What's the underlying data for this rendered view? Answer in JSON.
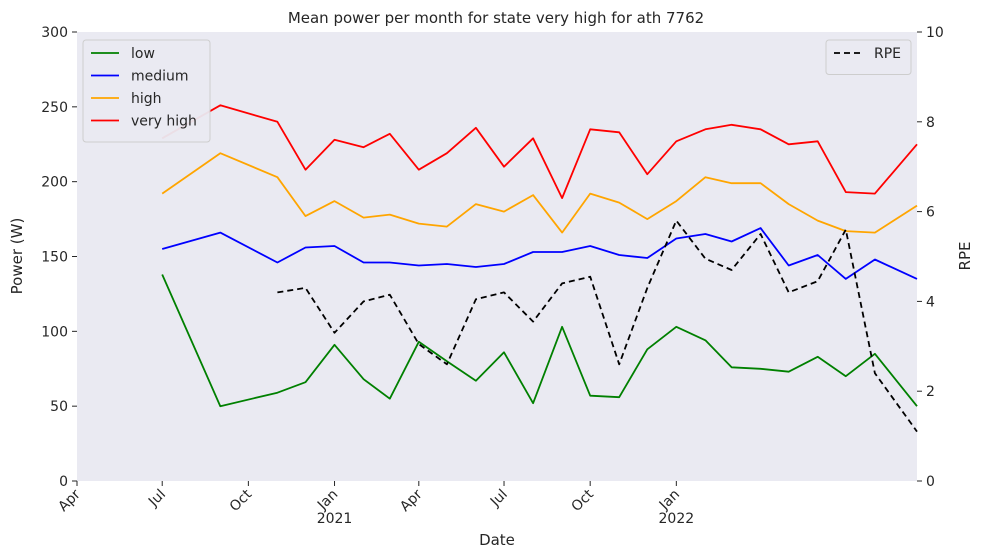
{
  "chart_data": {
    "type": "line",
    "title": "Mean power per month for state very high for ath 7762",
    "xlabel": "Date",
    "ylabel": "Power (W)",
    "y2label": "RPE",
    "ylim": [
      0,
      300
    ],
    "y2lim": [
      0,
      10
    ],
    "xlim": [
      "2020-04-01",
      "2022-09-15"
    ],
    "yticks": [
      0,
      50,
      100,
      150,
      200,
      250,
      300
    ],
    "y2ticks": [
      0,
      2,
      4,
      6,
      8,
      10
    ],
    "xticks": [
      {
        "date": "2020-04-01",
        "label": "Apr",
        "year": ""
      },
      {
        "date": "2020-07-01",
        "label": "Jul",
        "year": ""
      },
      {
        "date": "2020-10-01",
        "label": "Oct",
        "year": ""
      },
      {
        "date": "2021-01-01",
        "label": "Jan",
        "year": "2021"
      },
      {
        "date": "2021-04-01",
        "label": "Apr",
        "year": ""
      },
      {
        "date": "2021-07-01",
        "label": "Jul",
        "year": ""
      },
      {
        "date": "2021-10-01",
        "label": "Oct",
        "year": ""
      },
      {
        "date": "2022-01-01",
        "label": "Jan",
        "year": "2022"
      }
    ],
    "grid": false,
    "background": "#eaeaf2",
    "legend_position": "upper-left",
    "legend2_position": "upper-right",
    "series": [
      {
        "name": "low",
        "color": "#008000",
        "axis": "left",
        "x": [
          "2020-07-01",
          "2020-09-01",
          "2020-11-01",
          "2020-12-01",
          "2021-01-01",
          "2021-02-01",
          "2021-03-01",
          "2021-04-01",
          "2021-05-01",
          "2021-06-01",
          "2021-07-01",
          "2021-08-01",
          "2021-09-01",
          "2021-10-01",
          "2021-11-01",
          "2021-12-01",
          "2022-01-01",
          "2022-02-01",
          "2022-03-01",
          "2022-04-01",
          "2022-05-01",
          "2022-06-01",
          "2022-07-01",
          "2022-08-01",
          "2022-09-15"
        ],
        "y": [
          138,
          50,
          59,
          66,
          91,
          68,
          55,
          93,
          80,
          67,
          86,
          52,
          103,
          57,
          56,
          88,
          103,
          94,
          76,
          75,
          73,
          83,
          70,
          85,
          50
        ]
      },
      {
        "name": "medium",
        "color": "#0000ff",
        "axis": "left",
        "x": [
          "2020-07-01",
          "2020-09-01",
          "2020-11-01",
          "2020-12-01",
          "2021-01-01",
          "2021-02-01",
          "2021-03-01",
          "2021-04-01",
          "2021-05-01",
          "2021-06-01",
          "2021-07-01",
          "2021-08-01",
          "2021-09-01",
          "2021-10-01",
          "2021-11-01",
          "2021-12-01",
          "2022-01-01",
          "2022-02-01",
          "2022-03-01",
          "2022-04-01",
          "2022-05-01",
          "2022-06-01",
          "2022-07-01",
          "2022-08-01",
          "2022-09-15"
        ],
        "y": [
          155,
          166,
          146,
          156,
          157,
          146,
          146,
          144,
          145,
          143,
          145,
          153,
          153,
          157,
          151,
          149,
          162,
          165,
          160,
          169,
          144,
          151,
          135,
          148,
          135
        ]
      },
      {
        "name": "high",
        "color": "#ffa500",
        "axis": "left",
        "x": [
          "2020-07-01",
          "2020-09-01",
          "2020-11-01",
          "2020-12-01",
          "2021-01-01",
          "2021-02-01",
          "2021-03-01",
          "2021-04-01",
          "2021-05-01",
          "2021-06-01",
          "2021-07-01",
          "2021-08-01",
          "2021-09-01",
          "2021-10-01",
          "2021-11-01",
          "2021-12-01",
          "2022-01-01",
          "2022-02-01",
          "2022-03-01",
          "2022-04-01",
          "2022-05-01",
          "2022-06-01",
          "2022-07-01",
          "2022-08-01",
          "2022-09-15"
        ],
        "y": [
          192,
          219,
          203,
          177,
          187,
          176,
          178,
          172,
          170,
          185,
          180,
          191,
          166,
          192,
          186,
          175,
          187,
          203,
          199,
          199,
          185,
          174,
          167,
          166,
          184
        ]
      },
      {
        "name": "very high",
        "color": "#ff0000",
        "axis": "left",
        "x": [
          "2020-07-01",
          "2020-09-01",
          "2020-11-01",
          "2020-12-01",
          "2021-01-01",
          "2021-02-01",
          "2021-03-01",
          "2021-04-01",
          "2021-05-01",
          "2021-06-01",
          "2021-07-01",
          "2021-08-01",
          "2021-09-01",
          "2021-10-01",
          "2021-11-01",
          "2021-12-01",
          "2022-01-01",
          "2022-02-01",
          "2022-03-01",
          "2022-04-01",
          "2022-05-01",
          "2022-06-01",
          "2022-07-01",
          "2022-08-01",
          "2022-09-15"
        ],
        "y": [
          229,
          251,
          240,
          208,
          228,
          223,
          232,
          208,
          219,
          236,
          210,
          229,
          189,
          235,
          233,
          205,
          227,
          235,
          238,
          235,
          225,
          227,
          193,
          192,
          225
        ]
      },
      {
        "name": "RPE",
        "color": "#000000",
        "dashed": true,
        "axis": "right",
        "x": [
          "2020-11-01",
          "2020-12-01",
          "2021-01-01",
          "2021-02-01",
          "2021-03-01",
          "2021-04-01",
          "2021-05-01",
          "2021-06-01",
          "2021-07-01",
          "2021-08-01",
          "2021-09-01",
          "2021-10-01",
          "2021-11-01",
          "2021-12-01",
          "2022-01-01",
          "2022-02-01",
          "2022-03-01",
          "2022-04-01",
          "2022-05-01",
          "2022-06-01",
          "2022-07-01",
          "2022-08-01",
          "2022-09-15"
        ],
        "y": [
          4.2,
          4.3,
          3.3,
          4.0,
          4.15,
          3.05,
          2.6,
          4.05,
          4.2,
          3.55,
          4.4,
          4.55,
          2.6,
          4.3,
          5.8,
          4.95,
          4.7,
          5.5,
          4.2,
          4.45,
          5.6,
          2.4,
          1.1
        ]
      }
    ]
  }
}
